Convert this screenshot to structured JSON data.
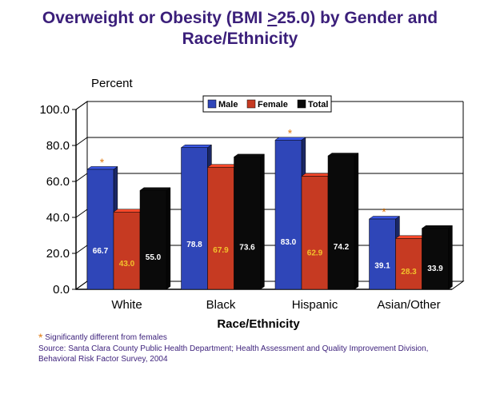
{
  "title": {
    "prefix": "Overweight or Obesity  (BMI ",
    "underlined": ">",
    "suffix": "25.0) by Gender and",
    "line2": "Race/Ethnicity"
  },
  "chart_data": {
    "type": "bar",
    "ylabel": "Percent",
    "xlabel": "Race/Ethnicity",
    "ylim": [
      0,
      100
    ],
    "yticks": [
      "0.0",
      "20.0",
      "40.0",
      "60.0",
      "80.0",
      "100.0"
    ],
    "categories": [
      "White",
      "Black",
      "Hispanic",
      "Asian/Other"
    ],
    "series": [
      {
        "name": "Male",
        "values": [
          66.7,
          78.8,
          83.0,
          39.1
        ],
        "labels": [
          "66.7",
          "78.8",
          "83.0",
          "39.1"
        ],
        "color": "#2f46b8",
        "label_color": "#ffffff"
      },
      {
        "name": "Female",
        "values": [
          43.0,
          67.9,
          62.9,
          28.3
        ],
        "labels": [
          "43.0",
          "67.9",
          "62.9",
          "28.3"
        ],
        "color": "#c63a22",
        "label_color": "#f2c22c"
      },
      {
        "name": "Total",
        "values": [
          55.0,
          73.6,
          74.2,
          33.9
        ],
        "labels": [
          "55.0",
          "73.6",
          "74.2",
          "33.9"
        ],
        "color": "#0a0a0a",
        "label_color": "#ffffff"
      }
    ],
    "significance_marker": "*",
    "significant_male": [
      true,
      false,
      true,
      true
    ],
    "legend_position": "top-center",
    "grid": true
  },
  "footnotes": {
    "star": "*",
    "significance": "Significantly different from females",
    "source": "Source: Santa Clara County Public Health Department; Health Assessment and Quality Improvement Division,",
    "source2": "Behavioral Risk Factor Survey, 2004"
  },
  "colors": {
    "title": "#3b1f7a",
    "marker": "#e07a10"
  }
}
